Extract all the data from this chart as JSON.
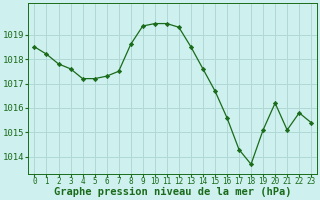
{
  "x": [
    0,
    1,
    2,
    3,
    4,
    5,
    6,
    7,
    8,
    9,
    10,
    11,
    12,
    13,
    14,
    15,
    16,
    17,
    18,
    19,
    20,
    21,
    22,
    23
  ],
  "y": [
    1018.5,
    1018.2,
    1017.8,
    1017.6,
    1017.2,
    1017.2,
    1017.3,
    1017.5,
    1018.6,
    1019.35,
    1019.45,
    1019.45,
    1019.3,
    1018.5,
    1017.6,
    1016.7,
    1015.6,
    1014.3,
    1013.7,
    1015.1,
    1016.2,
    1015.1,
    1015.8,
    1015.4
  ],
  "line_color": "#1a6b1a",
  "marker": "D",
  "marker_size": 2.2,
  "bg_color": "#cef0ee",
  "grid_color": "#b0d8d5",
  "ylabel_ticks": [
    1014,
    1015,
    1016,
    1017,
    1018,
    1019
  ],
  "xlabel": "Graphe pression niveau de la mer (hPa)",
  "ylim_min": 1013.3,
  "ylim_max": 1020.3,
  "xlabel_fontsize": 7.5,
  "tick_fontsize": 6.5,
  "xtick_fontsize": 5.5
}
